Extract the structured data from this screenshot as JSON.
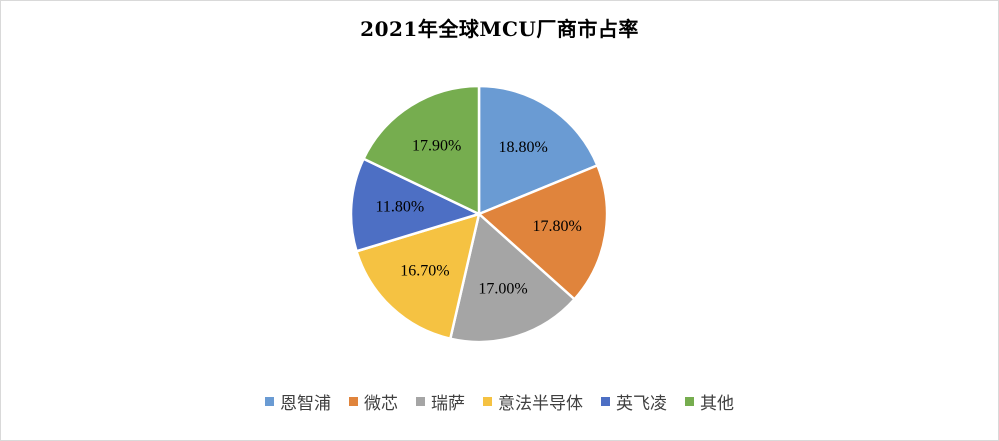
{
  "chart_data": {
    "type": "pie",
    "title": "2021年全球MCU厂商市占率",
    "labels": [
      "恩智浦",
      "微芯",
      "瑞萨",
      "意法半导体",
      "英飞凌",
      "其他"
    ],
    "values": [
      18.8,
      17.8,
      17.0,
      16.7,
      11.8,
      17.9
    ],
    "data_labels": [
      "18.80%",
      "17.80%",
      "17.00%",
      "16.70%",
      "11.80%",
      "17.90%"
    ],
    "colors": [
      "#6a9bd3",
      "#e0843c",
      "#a5a5a5",
      "#f5c242",
      "#4d6fc4",
      "#76ad4f"
    ],
    "legend_position": "bottom",
    "start": "12 o'clock",
    "direction": "clockwise"
  }
}
